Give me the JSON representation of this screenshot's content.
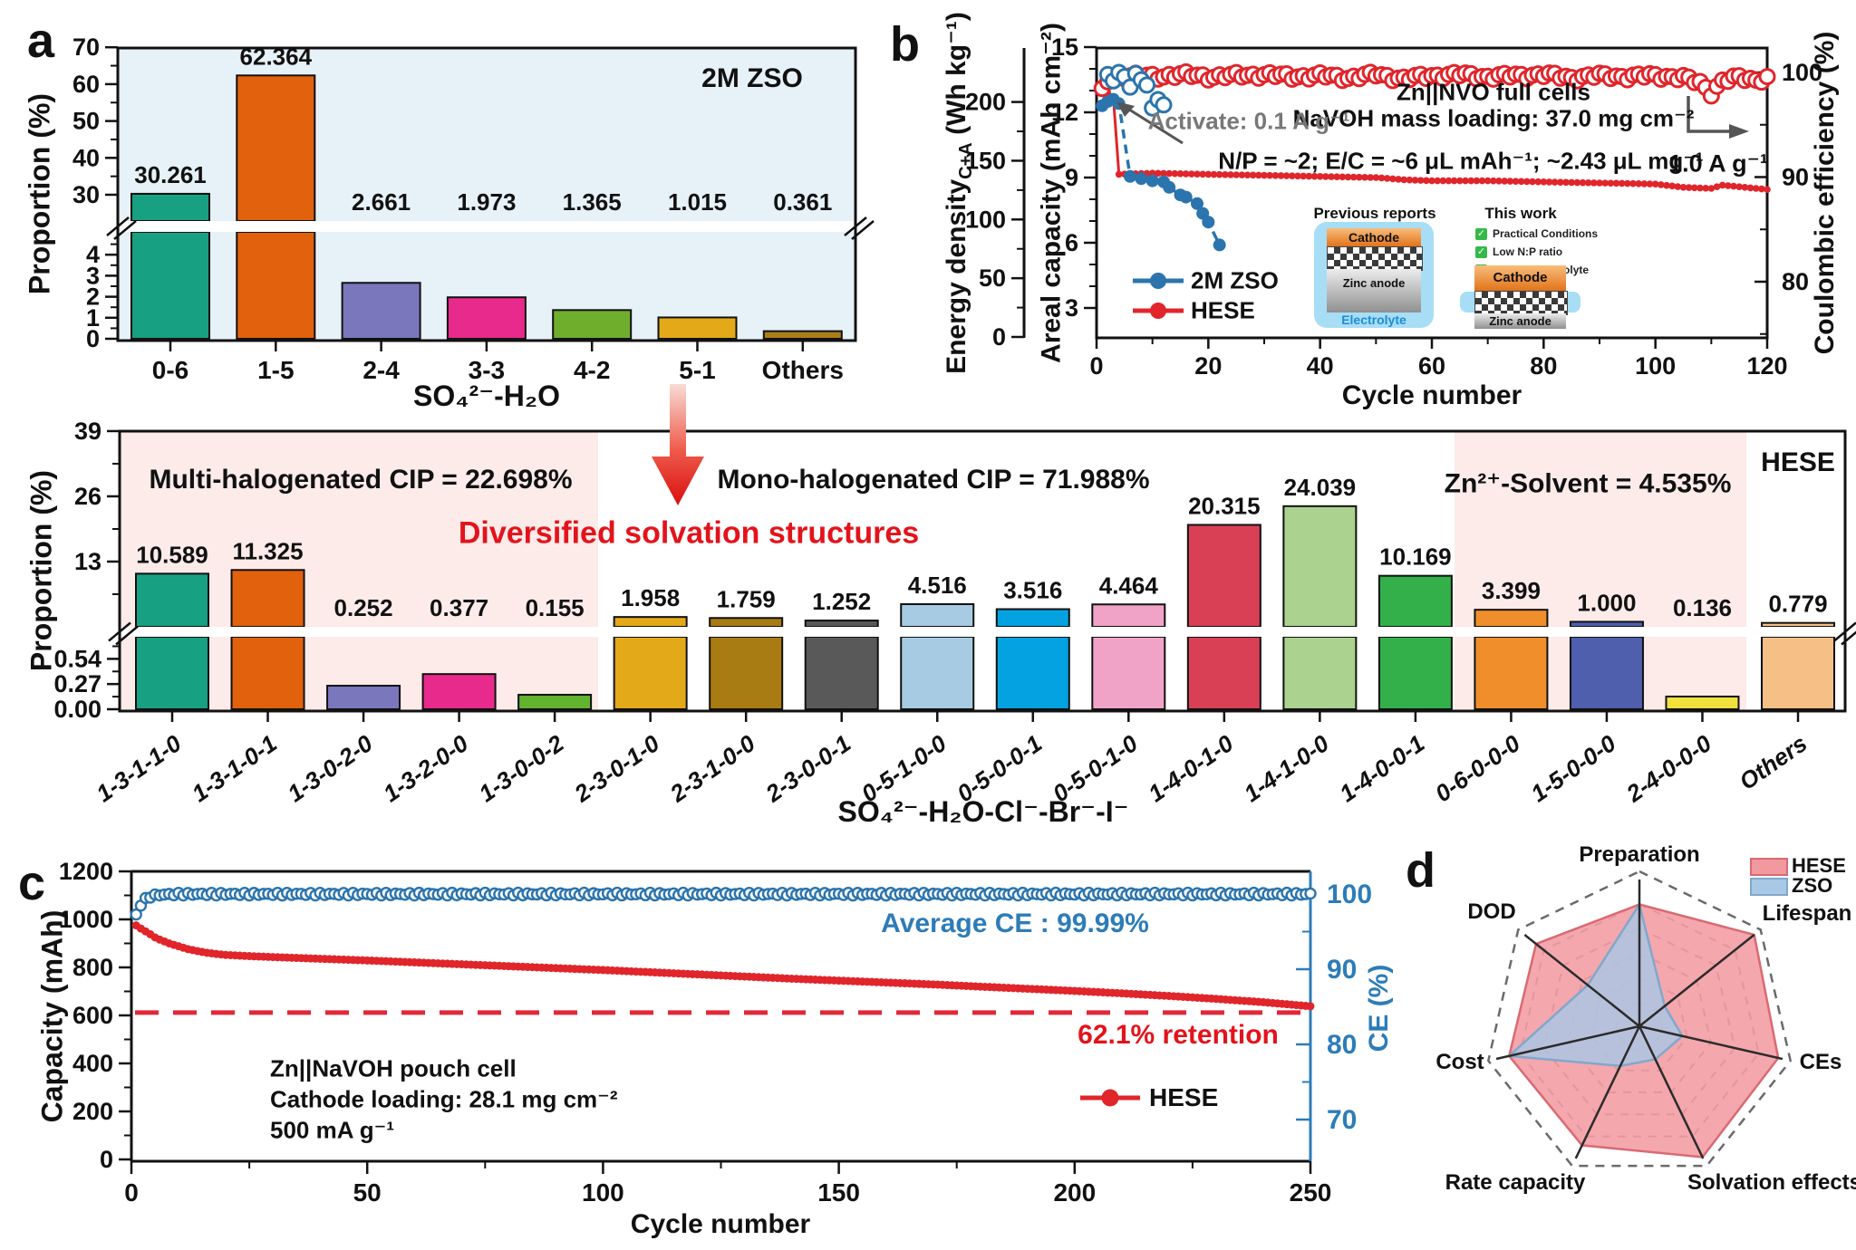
{
  "panel_labels": {
    "a": "a",
    "b": "b",
    "c": "c",
    "d": "d"
  },
  "chart_data": [
    {
      "id": "a",
      "type": "bar",
      "title": "2M ZSO",
      "ylabel": "Proportion (%)",
      "xlabel": "SO₄²⁻-H₂O",
      "categories": [
        "0-6",
        "1-5",
        "2-4",
        "3-3",
        "4-2",
        "5-1",
        "Others"
      ],
      "values": [
        30.261,
        62.364,
        2.661,
        1.973,
        1.365,
        1.015,
        0.361
      ],
      "value_labels": [
        "30.261",
        "62.364",
        "2.661",
        "1.973",
        "1.365",
        "1.015",
        "0.361"
      ],
      "bar_colors": [
        "#17a081",
        "#e2610d",
        "#7b77bd",
        "#e82a8c",
        "#6fae2c",
        "#e3a918",
        "#ab7f18"
      ],
      "yticks_top": [
        30,
        40,
        50,
        60,
        70
      ],
      "yticks_bottom": [
        0,
        1,
        2,
        3,
        4
      ],
      "ylim_top": [
        30,
        70
      ],
      "ylim_bottom": [
        0,
        4
      ],
      "broken_axis": true,
      "plot_bg": "#e7f1f8"
    },
    {
      "id": "b",
      "type": "scatter",
      "xlabel": "Cycle number",
      "xticks": [
        0,
        20,
        40,
        60,
        80,
        100,
        120
      ],
      "xlim": [
        0,
        120
      ],
      "ylabel_energy_main": "Energy density",
      "ylabel_energy_sub": "C+A",
      "ylabel_energy_unit": " (Wh kg⁻¹)",
      "ylabel_areal": "Areal capacity (mAh cm⁻²)",
      "ylabel_right": "Coulombic efficiency (%)",
      "yticks_energy": [
        0,
        50,
        100,
        150,
        200
      ],
      "yticks_areal": [
        3,
        6,
        9,
        12,
        15
      ],
      "yticks_ce": [
        80,
        90,
        100
      ],
      "annotations": {
        "cell": "Zn||NVO full cells",
        "loading": "NaVOH mass loading: 37.0 mg cm⁻²",
        "conditions": "N/P = ~2;  E/C = ~6 μL mAh⁻¹; ~2.43 μL mg⁻¹",
        "rate": "1.0 A g⁻¹",
        "activate": "Activate: 0.1 A g⁻¹"
      },
      "legend": [
        {
          "label": "2M ZSO",
          "color": "#2b74ad"
        },
        {
          "label": "HESE",
          "color": "#e0252b"
        }
      ],
      "inset": {
        "prev_title": "Previous reports",
        "this_title": "This work",
        "cathode_label": "Cathode",
        "zinc_label": "Zinc anode",
        "zinc2_label": "Zinc anode",
        "electrolyte_label": "Electrolyte",
        "check_icon": "✓",
        "checks": [
          "Practical Conditions",
          "Low N:P ratio",
          "Limited electrolyte"
        ]
      },
      "series": [
        {
          "name": "HESE areal capacity",
          "axis": "areal",
          "color": "#e0252b",
          "style": "dot-line",
          "points": [
            [
              1,
              13.3
            ],
            [
              2,
              12.9
            ],
            [
              3,
              12.7
            ],
            [
              4,
              9.15
            ],
            [
              10,
              9.2
            ],
            [
              20,
              9.15
            ],
            [
              30,
              9.1
            ],
            [
              40,
              9.05
            ],
            [
              50,
              9.0
            ],
            [
              55,
              8.9
            ],
            [
              60,
              8.85
            ],
            [
              70,
              8.85
            ],
            [
              80,
              8.8
            ],
            [
              90,
              8.75
            ],
            [
              100,
              8.7
            ],
            [
              105,
              8.55
            ],
            [
              110,
              8.5
            ],
            [
              112,
              8.65
            ],
            [
              116,
              8.55
            ],
            [
              120,
              8.45
            ]
          ]
        },
        {
          "name": "2M ZSO areal capacity",
          "axis": "areal",
          "color": "#2b74ad",
          "style": "dash-dot",
          "points": [
            [
              1,
              12.3
            ],
            [
              2,
              12.5
            ],
            [
              3,
              12.6
            ],
            [
              4,
              12.4
            ],
            [
              6,
              9.05
            ],
            [
              8,
              8.95
            ],
            [
              10,
              8.85
            ],
            [
              12,
              8.8
            ],
            [
              13,
              8.55
            ],
            [
              15,
              8.2
            ],
            [
              16,
              8.1
            ],
            [
              18,
              7.8
            ],
            [
              19,
              7.35
            ],
            [
              20,
              6.95
            ],
            [
              22,
              5.9
            ]
          ]
        },
        {
          "name": "HESE coulombic efficiency",
          "axis": "ce",
          "color": "#e0252b",
          "style": "hollow",
          "points": [
            [
              1,
              98.2
            ],
            [
              2,
              99.3
            ],
            [
              3,
              99.6
            ],
            [
              5,
              99.7
            ],
            [
              10,
              99.6
            ],
            [
              15,
              99.8
            ],
            [
              20,
              99.6
            ],
            [
              25,
              99.7
            ],
            [
              30,
              99.8
            ],
            [
              35,
              99.6
            ],
            [
              40,
              99.7
            ],
            [
              45,
              99.5
            ],
            [
              50,
              99.8
            ],
            [
              55,
              99.4
            ],
            [
              60,
              99.7
            ],
            [
              65,
              99.8
            ],
            [
              70,
              99.6
            ],
            [
              75,
              99.7
            ],
            [
              80,
              99.8
            ],
            [
              85,
              99.5
            ],
            [
              90,
              99.7
            ],
            [
              95,
              99.6
            ],
            [
              100,
              99.7
            ],
            [
              105,
              99.5
            ],
            [
              108,
              99.0
            ],
            [
              110,
              98.1
            ],
            [
              112,
              99.2
            ],
            [
              115,
              99.5
            ],
            [
              118,
              99.3
            ],
            [
              120,
              99.5
            ]
          ]
        },
        {
          "name": "2M ZSO coulombic efficiency",
          "axis": "ce",
          "color": "#2b74ad",
          "style": "hollow",
          "points": [
            [
              2,
              99.8
            ],
            [
              3,
              99.2
            ],
            [
              4,
              100.0
            ],
            [
              5,
              99.6
            ],
            [
              6,
              98.6
            ],
            [
              7,
              99.9
            ],
            [
              8,
              99.3
            ],
            [
              9,
              98.8
            ],
            [
              10,
              96.6
            ],
            [
              11,
              97.4
            ],
            [
              12,
              96.9
            ]
          ]
        }
      ]
    },
    {
      "id": "hese",
      "type": "bar",
      "panel_tag": "HESE",
      "ylabel": "Proportion (%)",
      "xlabel": "SO₄²⁻-H₂O-Cl⁻-Br⁻-I⁻",
      "region_labels": {
        "multi": "Multi-halogenated CIP = 22.698%",
        "mono": "Mono-halogenated CIP = 71.988%",
        "zn": "Zn²⁺-Solvent = 4.535%",
        "diversified": "Diversified solvation structures"
      },
      "categories": [
        "1-3-1-1-0",
        "1-3-1-0-1",
        "1-3-0-2-0",
        "1-3-2-0-0",
        "1-3-0-0-2",
        "2-3-0-1-0",
        "2-3-1-0-0",
        "2-3-0-0-1",
        "0-5-1-0-0",
        "0-5-0-0-1",
        "0-5-0-1-0",
        "1-4-0-1-0",
        "1-4-1-0-0",
        "1-4-0-0-1",
        "0-6-0-0-0",
        "1-5-0-0-0",
        "2-4-0-0-0",
        "Others"
      ],
      "values": [
        10.589,
        11.325,
        0.252,
        0.377,
        0.155,
        1.958,
        1.759,
        1.252,
        4.516,
        3.516,
        4.464,
        20.315,
        24.039,
        10.169,
        3.399,
        1.0,
        0.136,
        0.779
      ],
      "value_labels": [
        "10.589",
        "11.325",
        "0.252",
        "0.377",
        "0.155",
        "1.958",
        "1.759",
        "1.252",
        "4.516",
        "3.516",
        "4.464",
        "20.315",
        "24.039",
        "10.169",
        "3.399",
        "1.000",
        "0.136",
        "0.779"
      ],
      "bar_colors": [
        "#17a081",
        "#e2610d",
        "#7b77bd",
        "#e82a8c",
        "#62b32e",
        "#e3a918",
        "#a97b13",
        "#595959",
        "#a6cbe3",
        "#04a2e0",
        "#f0a3c6",
        "#d94056",
        "#abd28e",
        "#33b04a",
        "#f08e2b",
        "#4f5fae",
        "#f2e03c",
        "#f5bf85"
      ],
      "yticks_top": [
        13,
        26,
        39
      ],
      "yticks_bottom": [
        0.0,
        0.27,
        0.54
      ],
      "ytick_bottom_labels": [
        "0.00",
        "0.27",
        "0.54"
      ],
      "ylim_top": [
        0,
        39
      ],
      "ylim_bottom": [
        0,
        0.54
      ],
      "broken_axis": true,
      "region_color": "#fcebe9"
    },
    {
      "id": "c",
      "type": "scatter",
      "ylabel": "Capacity (mAh)",
      "ylabel_right": "CE (%)",
      "xlabel": "Cycle number",
      "xticks": [
        0,
        50,
        100,
        150,
        200,
        250
      ],
      "xlim": [
        0,
        250
      ],
      "yticks_cap": [
        0,
        200,
        400,
        600,
        800,
        1000,
        1200
      ],
      "ylim_cap": [
        0,
        1200
      ],
      "yticks_ce": [
        70,
        80,
        90,
        100
      ],
      "texts": {
        "cell": "Zn||NaVOH pouch cell",
        "loading": "Cathode loading: 28.1 mg cm⁻²",
        "rate": "500 mA g⁻¹",
        "avg_ce": "Average CE : 99.99%",
        "retention": "62.1% retention",
        "legend": "HESE"
      },
      "retention_level_mAh": 612,
      "series": [
        {
          "name": "HESE capacity",
          "axis": "cap",
          "color": "#e0252b",
          "style": "dot-line",
          "points": [
            [
              1,
              975
            ],
            [
              2,
              962
            ],
            [
              3,
              950
            ],
            [
              4,
              938
            ],
            [
              5,
              925
            ],
            [
              6,
              916
            ],
            [
              8,
              900
            ],
            [
              10,
              888
            ],
            [
              12,
              876
            ],
            [
              14,
              868
            ],
            [
              16,
              861
            ],
            [
              18,
              856
            ],
            [
              20,
              852
            ],
            [
              25,
              847
            ],
            [
              30,
              843
            ],
            [
              40,
              836
            ],
            [
              50,
              829
            ],
            [
              60,
              821
            ],
            [
              70,
              813
            ],
            [
              80,
              805
            ],
            [
              90,
              797
            ],
            [
              100,
              789
            ],
            [
              110,
              780
            ],
            [
              120,
              771
            ],
            [
              130,
              762
            ],
            [
              140,
              753
            ],
            [
              150,
              745
            ],
            [
              160,
              737
            ],
            [
              170,
              729
            ],
            [
              180,
              720
            ],
            [
              190,
              711
            ],
            [
              200,
              702
            ],
            [
              210,
              692
            ],
            [
              220,
              681
            ],
            [
              230,
              669
            ],
            [
              240,
              655
            ],
            [
              250,
              638
            ]
          ]
        },
        {
          "name": "HESE CE",
          "axis": "ce",
          "color": "#2b74ad",
          "style": "hollow",
          "points": [
            [
              1,
              97.2
            ],
            [
              2,
              98.6
            ],
            [
              3,
              99.3
            ],
            [
              4,
              99.7
            ],
            [
              6,
              99.9
            ],
            [
              10,
              99.99
            ],
            [
              250,
              99.99
            ]
          ]
        }
      ]
    },
    {
      "id": "d",
      "type": "radar",
      "axes": [
        "Preparation",
        "Lifespan",
        "CEs",
        "Solvation effects",
        "Rate capacity",
        "Cost",
        "DOD"
      ],
      "series": [
        {
          "name": "HESE",
          "fill": "#f2989f",
          "fill_opacity": 0.85,
          "stroke": "#d96a72",
          "values": [
            0.83,
            1.0,
            0.97,
            0.99,
            0.9,
            0.91,
            0.9
          ]
        },
        {
          "name": "ZSO",
          "fill": "#a9c8e6",
          "fill_opacity": 0.8,
          "stroke": "#80a8cc",
          "values": [
            0.83,
            0.22,
            0.3,
            0.25,
            0.3,
            0.91,
            0.45
          ]
        }
      ],
      "legend": [
        {
          "label": "HESE",
          "fill": "#f2989f",
          "stroke": "#d96a72"
        },
        {
          "label": "ZSO",
          "fill": "#a9c8e6",
          "stroke": "#80a8cc"
        }
      ]
    }
  ]
}
